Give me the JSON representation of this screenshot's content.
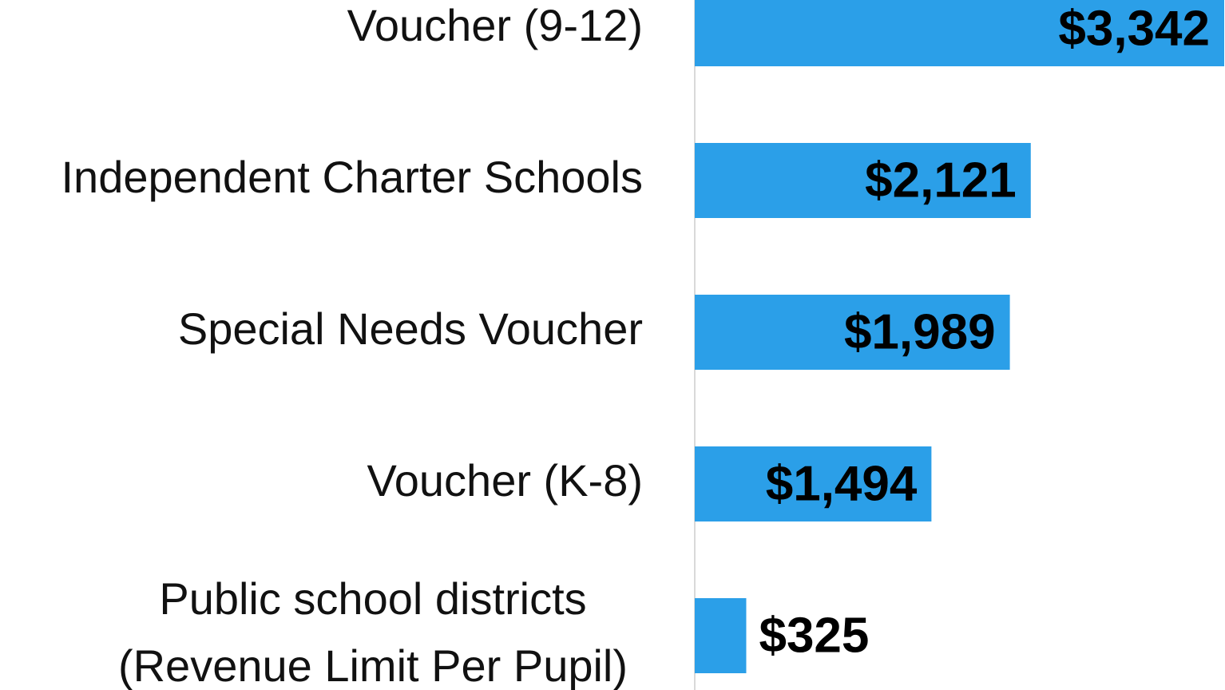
{
  "chart_data": {
    "type": "bar",
    "orientation": "horizontal",
    "categories": [
      "Voucher (9-12)",
      "Independent Charter Schools",
      "Special Needs Voucher",
      "Voucher (K-8)",
      "Public school districts\n(Revenue Limit Per Pupil)"
    ],
    "values": [
      3342,
      2121,
      1989,
      1494,
      325
    ],
    "value_labels": [
      "$3,342",
      "$2,121",
      "$1,989",
      "$1,494",
      "$325"
    ],
    "color": "#2b9fe8"
  }
}
